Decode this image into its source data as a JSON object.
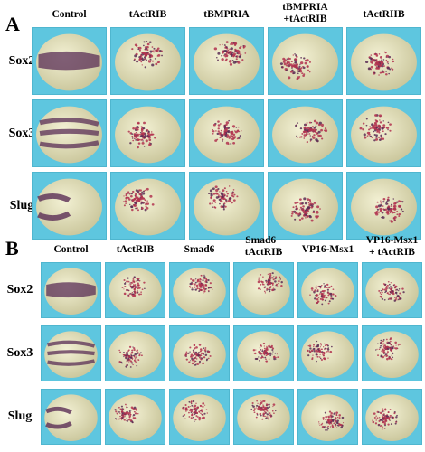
{
  "panel_a": {
    "letter": "A",
    "columns": [
      "Control",
      "tActRIB",
      "tBMPRIA",
      "tBMPRIA\n+tActRIB",
      "tActRIIB"
    ],
    "rows": [
      "Sox2",
      "Sox3",
      "Slug"
    ]
  },
  "panel_b": {
    "letter": "B",
    "columns": [
      "Control",
      "tActRIB",
      "Smad6",
      "Smad6+\ntActRIB",
      "VP16-Msx1",
      "VP16-Msx1\n+ tActRIB"
    ],
    "rows": [
      "Sox2",
      "Sox3",
      "Slug"
    ]
  },
  "colors": {
    "background": "#5ec6df",
    "embryo": "#e6e3bd",
    "stain_dark": "#5a2d55",
    "stain_red": "#b2324f"
  }
}
